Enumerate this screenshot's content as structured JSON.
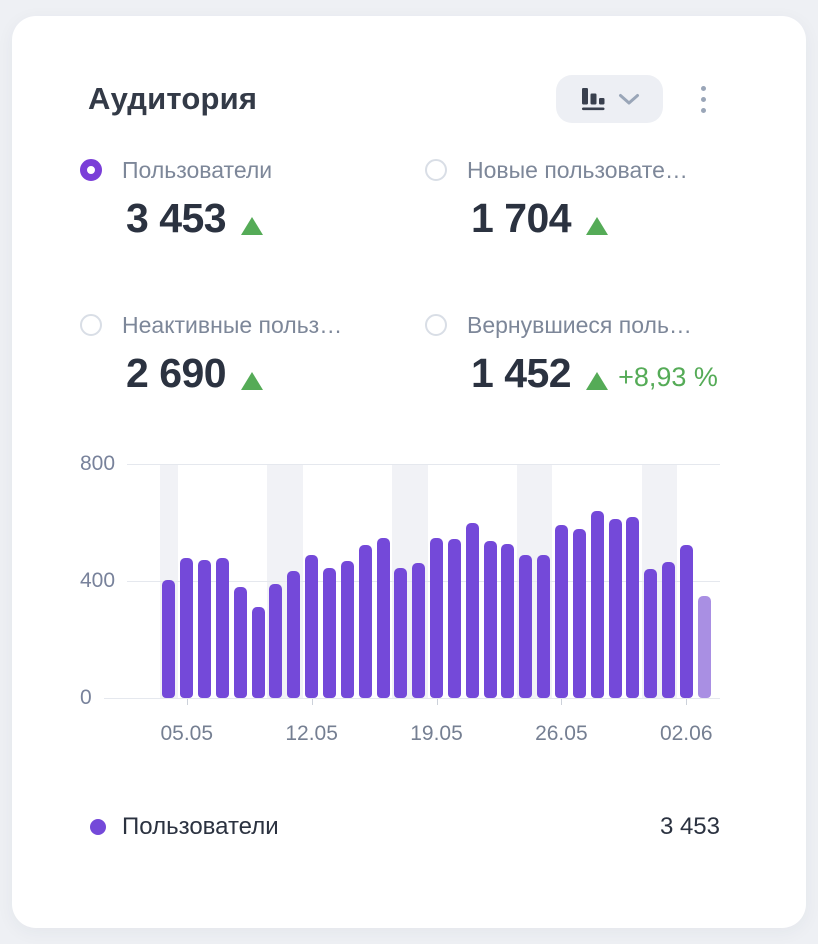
{
  "card": {
    "title": "Аудитория",
    "controls": {
      "chart_type_button": {
        "icon": "bar-chart-icon",
        "chevron": "chevron-down-icon"
      },
      "menu_button": {
        "icon": "kebab-menu-icon"
      }
    },
    "metrics": [
      {
        "label": "Пользователи",
        "value": "3 453",
        "selected": true,
        "trend": "up"
      },
      {
        "label": "Новые пользовате…",
        "value": "1 704",
        "selected": false,
        "trend": "up"
      },
      {
        "label": "Неактивные польз…",
        "value": "2 690",
        "selected": false,
        "trend": "up"
      },
      {
        "label": "Вернувшиеся поль…",
        "value": "1 452",
        "selected": false,
        "trend": "up",
        "delta": "+8,93 %"
      }
    ],
    "legend": {
      "label": "Пользователи",
      "value": "3 453"
    }
  },
  "chart_data": {
    "type": "bar",
    "series": [
      {
        "name": "Пользователи",
        "total": "3 453",
        "values": [
          405,
          480,
          472,
          480,
          380,
          310,
          390,
          435,
          490,
          445,
          468,
          523,
          548,
          443,
          463,
          548,
          542,
          598,
          536,
          528,
          490,
          490,
          590,
          578,
          638,
          612,
          618,
          442,
          465,
          523,
          350
        ]
      }
    ],
    "x_tick_labels": [
      "05.05",
      "12.05",
      "19.05",
      "26.05",
      "02.06"
    ],
    "x_tick_bar_indices": [
      1,
      8,
      15,
      22,
      29
    ],
    "y_ticks": [
      0,
      400,
      800
    ],
    "ylim": [
      0,
      800
    ],
    "grid": true,
    "legend_position": "bottom",
    "weekend_band_bar_indices": [
      0,
      6,
      7,
      13,
      14,
      20,
      21,
      27,
      28
    ],
    "last_bar_incomplete": true
  },
  "colors": {
    "page_bg": "#eef0f4",
    "bar": "#7449d9",
    "bar_incomplete": "#a98fe3",
    "accent_purple": "#7a3ed8",
    "green": "#55ab57",
    "band": "#f1f2f6",
    "gridline": "#e5e8ee",
    "axis_text": "#78829b",
    "label_text": "#7d8799",
    "value_text": "#2b3240",
    "title_text": "#333a47",
    "icon_dark": "#39404e",
    "icon_muted": "#9aa6b8",
    "button_bg": "#edeff4",
    "radio_border": "#d9dee6"
  }
}
